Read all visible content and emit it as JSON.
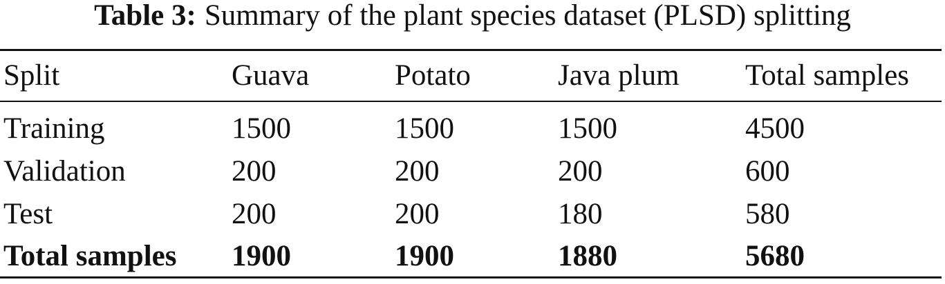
{
  "caption": {
    "label": "Table 3:",
    "text": "Summary of the plant species dataset (PLSD) splitting"
  },
  "table": {
    "header": [
      "Split",
      "Guava",
      "Potato",
      "Java plum",
      "Total samples"
    ],
    "rows": [
      [
        "Training",
        "1500",
        "1500",
        "1500",
        "4500"
      ],
      [
        "Validation",
        "200",
        "200",
        "200",
        "600"
      ],
      [
        "Test",
        "200",
        "200",
        "180",
        "580"
      ]
    ],
    "total": [
      "Total samples",
      "1900",
      "1900",
      "1880",
      "5680"
    ]
  }
}
